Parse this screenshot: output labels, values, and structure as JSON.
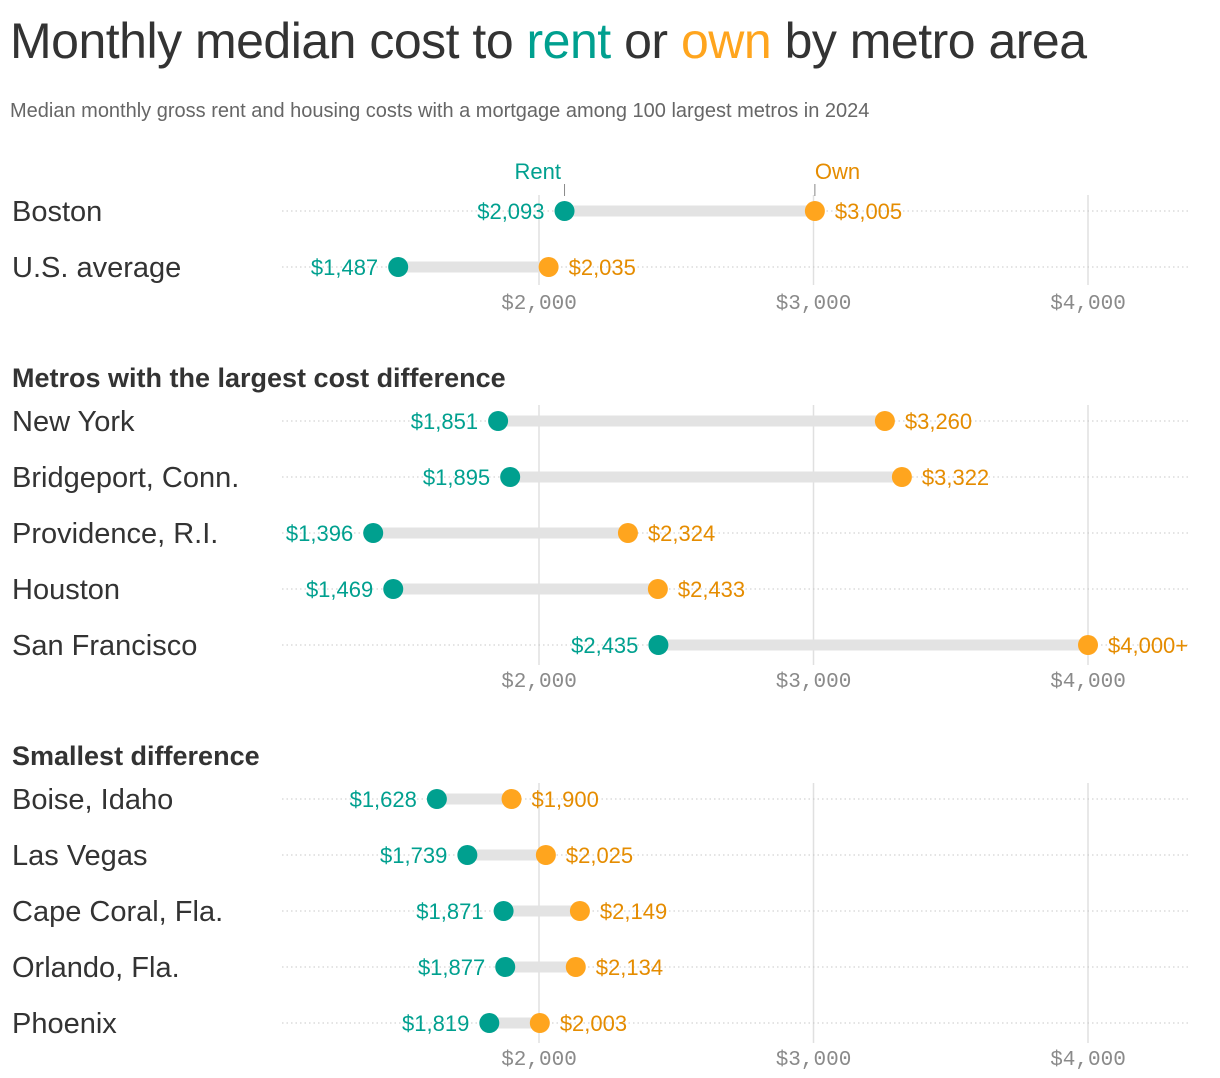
{
  "title": {
    "part1": "Monthly median cost to ",
    "rent": "rent",
    "part2": " or ",
    "own": "own",
    "part3": " by metro area"
  },
  "subtitle": "Median monthly gross rent and housing costs with a mortgage among 100 largest metros in 2024",
  "colors": {
    "rent": "#00a08f",
    "own": "#ffa51e",
    "own_text": "#e58c00",
    "bar": "#e3e3e3",
    "grid": "#e0e0e0",
    "tick_text": "#8a8a8a"
  },
  "chart_data": [
    {
      "type": "dumbbell",
      "title": "",
      "series": [
        {
          "name": "Rent"
        },
        {
          "name": "Own"
        }
      ],
      "x_ticks": [
        "$2,000",
        "$3,000",
        "$4,000"
      ],
      "x_tick_values": [
        2000,
        3000,
        4000
      ],
      "rows": [
        {
          "label": "Boston",
          "rent": 2093,
          "own": 3005,
          "rent_label": "$2,093",
          "own_label": "$3,005"
        },
        {
          "label": "U.S. average",
          "rent": 1487,
          "own": 2035,
          "rent_label": "$1,487",
          "own_label": "$2,035"
        }
      ]
    },
    {
      "type": "dumbbell",
      "title": "Metros with the largest cost difference",
      "x_ticks": [
        "$2,000",
        "$3,000",
        "$4,000"
      ],
      "x_tick_values": [
        2000,
        3000,
        4000
      ],
      "rows": [
        {
          "label": "New York",
          "rent": 1851,
          "own": 3260,
          "rent_label": "$1,851",
          "own_label": "$3,260"
        },
        {
          "label": "Bridgeport, Conn.",
          "rent": 1895,
          "own": 3322,
          "rent_label": "$1,895",
          "own_label": "$3,322"
        },
        {
          "label": "Providence, R.I.",
          "rent": 1396,
          "own": 2324,
          "rent_label": "$1,396",
          "own_label": "$2,324"
        },
        {
          "label": "Houston",
          "rent": 1469,
          "own": 2433,
          "rent_label": "$1,469",
          "own_label": "$2,433"
        },
        {
          "label": "San Francisco",
          "rent": 2435,
          "own": 4000,
          "rent_label": "$2,435",
          "own_label": "$4,000+"
        }
      ]
    },
    {
      "type": "dumbbell",
      "title": "Smallest difference",
      "x_ticks": [
        "$2,000",
        "$3,000",
        "$4,000"
      ],
      "x_tick_values": [
        2000,
        3000,
        4000
      ],
      "rows": [
        {
          "label": "Boise, Idaho",
          "rent": 1628,
          "own": 1900,
          "rent_label": "$1,628",
          "own_label": "$1,900"
        },
        {
          "label": "Las Vegas",
          "rent": 1739,
          "own": 2025,
          "rent_label": "$1,739",
          "own_label": "$2,025"
        },
        {
          "label": "Cape Coral, Fla.",
          "rent": 1871,
          "own": 2149,
          "rent_label": "$1,871",
          "own_label": "$2,149"
        },
        {
          "label": "Orlando, Fla.",
          "rent": 1877,
          "own": 2134,
          "rent_label": "$1,877",
          "own_label": "$2,134"
        },
        {
          "label": "Phoenix",
          "rent": 1819,
          "own": 2003,
          "rent_label": "$1,819",
          "own_label": "$2,003"
        }
      ]
    }
  ]
}
